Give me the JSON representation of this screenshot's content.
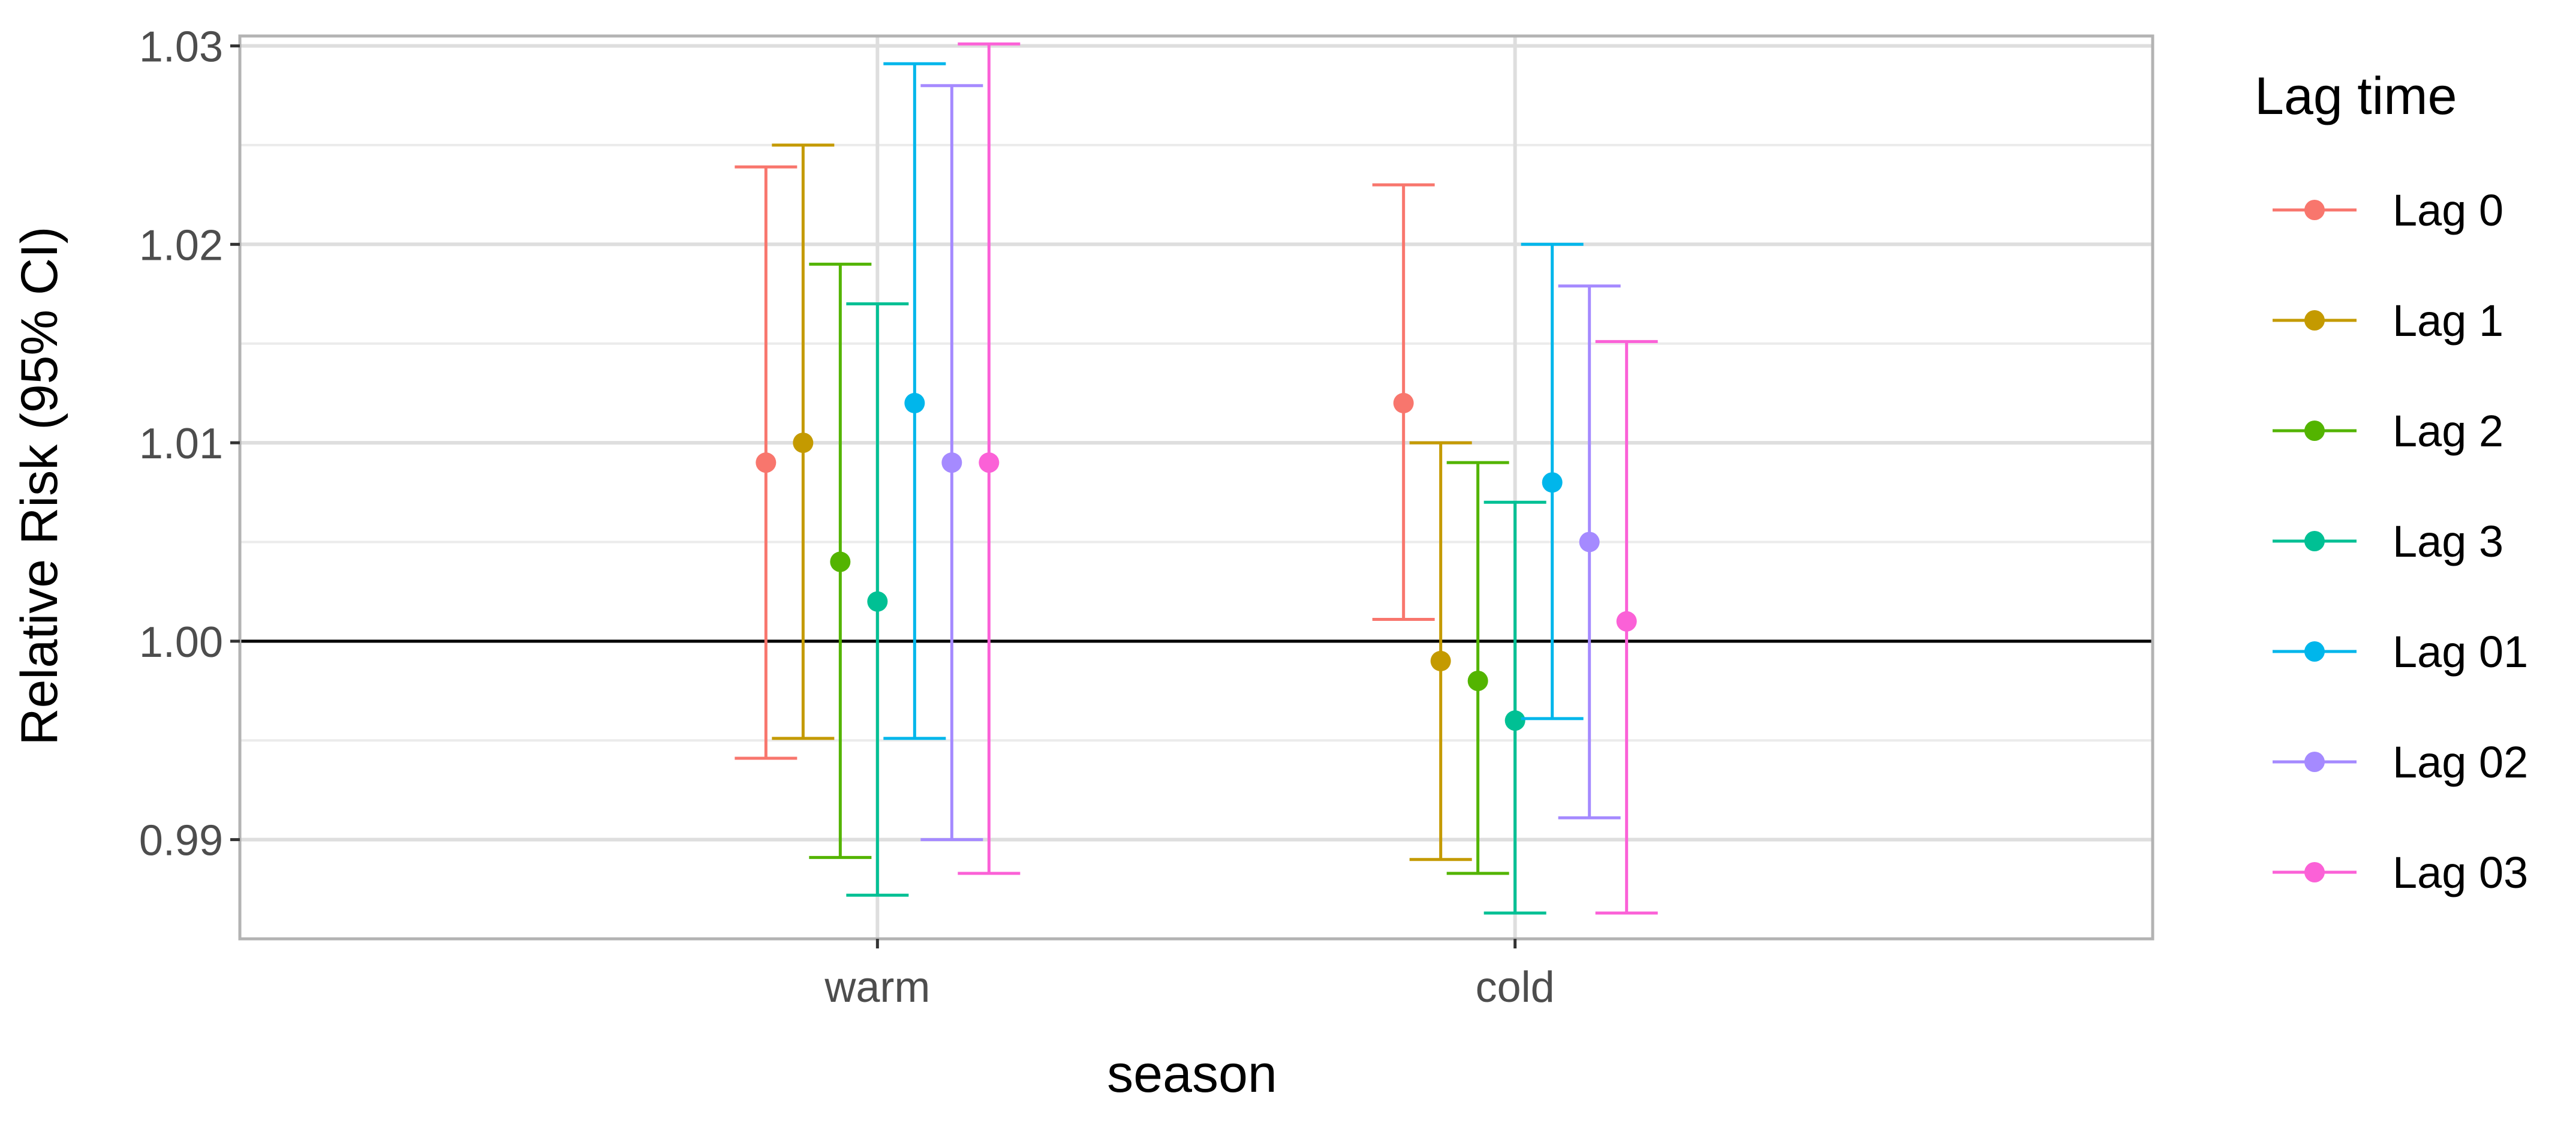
{
  "chart_data": {
    "type": "errorbar",
    "xlabel": "season",
    "ylabel": "Relative Risk (95% CI)",
    "categories": [
      "warm",
      "cold"
    ],
    "ylim": [
      0.985,
      1.0305
    ],
    "yticks": [
      0.99,
      1.0,
      1.01,
      1.02,
      1.03
    ],
    "ytick_labels": [
      "0.99",
      "1.00",
      "1.01",
      "1.02",
      "1.03"
    ],
    "reference_line": 1.0,
    "grid": true,
    "legend": {
      "title": "Lag time",
      "position": "right"
    },
    "series": [
      {
        "name": "Lag 0",
        "color": "#F8766D",
        "points": [
          {
            "category": "warm",
            "estimate": 1.009,
            "lower": 0.9941,
            "upper": 1.0239
          },
          {
            "category": "cold",
            "estimate": 1.012,
            "lower": 1.0011,
            "upper": 1.023
          }
        ]
      },
      {
        "name": "Lag 1",
        "color": "#C49A00",
        "points": [
          {
            "category": "warm",
            "estimate": 1.01,
            "lower": 0.9951,
            "upper": 1.025
          },
          {
            "category": "cold",
            "estimate": 0.999,
            "lower": 0.989,
            "upper": 1.01
          }
        ]
      },
      {
        "name": "Lag 2",
        "color": "#53B400",
        "points": [
          {
            "category": "warm",
            "estimate": 1.004,
            "lower": 0.9891,
            "upper": 1.019
          },
          {
            "category": "cold",
            "estimate": 0.998,
            "lower": 0.9883,
            "upper": 1.009
          }
        ]
      },
      {
        "name": "Lag 3",
        "color": "#00C094",
        "points": [
          {
            "category": "warm",
            "estimate": 1.002,
            "lower": 0.9872,
            "upper": 1.017
          },
          {
            "category": "cold",
            "estimate": 0.996,
            "lower": 0.9863,
            "upper": 1.007
          }
        ]
      },
      {
        "name": "Lag 01",
        "color": "#00B6EB",
        "points": [
          {
            "category": "warm",
            "estimate": 1.012,
            "lower": 0.9951,
            "upper": 1.0291
          },
          {
            "category": "cold",
            "estimate": 1.008,
            "lower": 0.9961,
            "upper": 1.02
          }
        ]
      },
      {
        "name": "Lag 02",
        "color": "#A58AFF",
        "points": [
          {
            "category": "warm",
            "estimate": 1.009,
            "lower": 0.99,
            "upper": 1.028
          },
          {
            "category": "cold",
            "estimate": 1.005,
            "lower": 0.9911,
            "upper": 1.0179
          }
        ]
      },
      {
        "name": "Lag 03",
        "color": "#FB61D7",
        "points": [
          {
            "category": "warm",
            "estimate": 1.009,
            "lower": 0.9883,
            "upper": 1.0301
          },
          {
            "category": "cold",
            "estimate": 1.001,
            "lower": 0.9863,
            "upper": 1.0151
          }
        ]
      }
    ]
  }
}
